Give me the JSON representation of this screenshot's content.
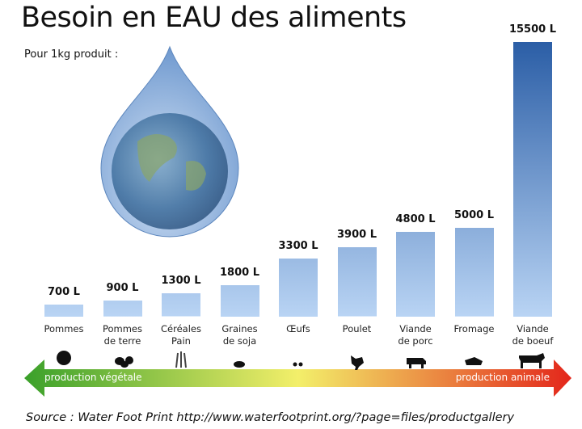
{
  "chart_data": {
    "type": "bar",
    "title": "Besoin en EAU des aliments",
    "subtitle": "Pour 1kg produit :",
    "categories": [
      "Pommes",
      "Pommes\nde terre",
      "Céréales\nPain",
      "Graines\nde soja",
      "Œufs",
      "Poulet",
      "Viande\nde porc",
      "Fromage",
      "Viande\nde boeuf"
    ],
    "values": [
      700,
      900,
      1300,
      1800,
      3300,
      3900,
      4800,
      5000,
      15500
    ],
    "value_labels": [
      "700 L",
      "900 L",
      "1300 L",
      "1800 L",
      "3300 L",
      "3900 L",
      "4800 L",
      "5000 L",
      "15500 L"
    ],
    "arrow_left_label": "production végétale",
    "arrow_right_label": "production animale",
    "source": "Source : Water Foot Print http://www.waterfootprint.org/?page=files/productgallery"
  }
}
